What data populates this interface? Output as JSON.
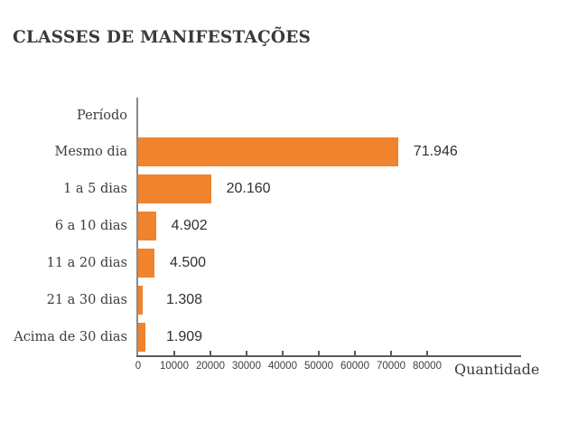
{
  "title": "CLASSES DE MANIFESTAÇÕES",
  "chart_data": {
    "type": "bar",
    "orientation": "horizontal",
    "title": "CLASSES DE MANIFESTAÇÕES",
    "category_axis_label": "Período",
    "value_axis_label": "Quantidade",
    "categories": [
      "Mesmo dia",
      "1 a 5 dias",
      "6 a 10 dias",
      "11 a 20 dias",
      "21 a 30 dias",
      "Acima de 30 dias"
    ],
    "values": [
      71946,
      20160,
      4902,
      4500,
      1308,
      1909
    ],
    "value_labels": [
      "71.946",
      "20.160",
      "4.902",
      "4.500",
      "1.308",
      "1.909"
    ],
    "x_ticks": [
      0,
      10000,
      20000,
      30000,
      40000,
      50000,
      60000,
      70000,
      80000
    ],
    "x_tick_labels": [
      "0",
      "10000",
      "20000",
      "30000",
      "40000",
      "50000",
      "60000",
      "70000",
      "80000"
    ],
    "xlim": [
      0,
      106000
    ],
    "grid": false,
    "legend": false,
    "bar_color": "#F0832D",
    "axis_color": "#8A8A8A",
    "text_color": "#3D3D3D"
  }
}
